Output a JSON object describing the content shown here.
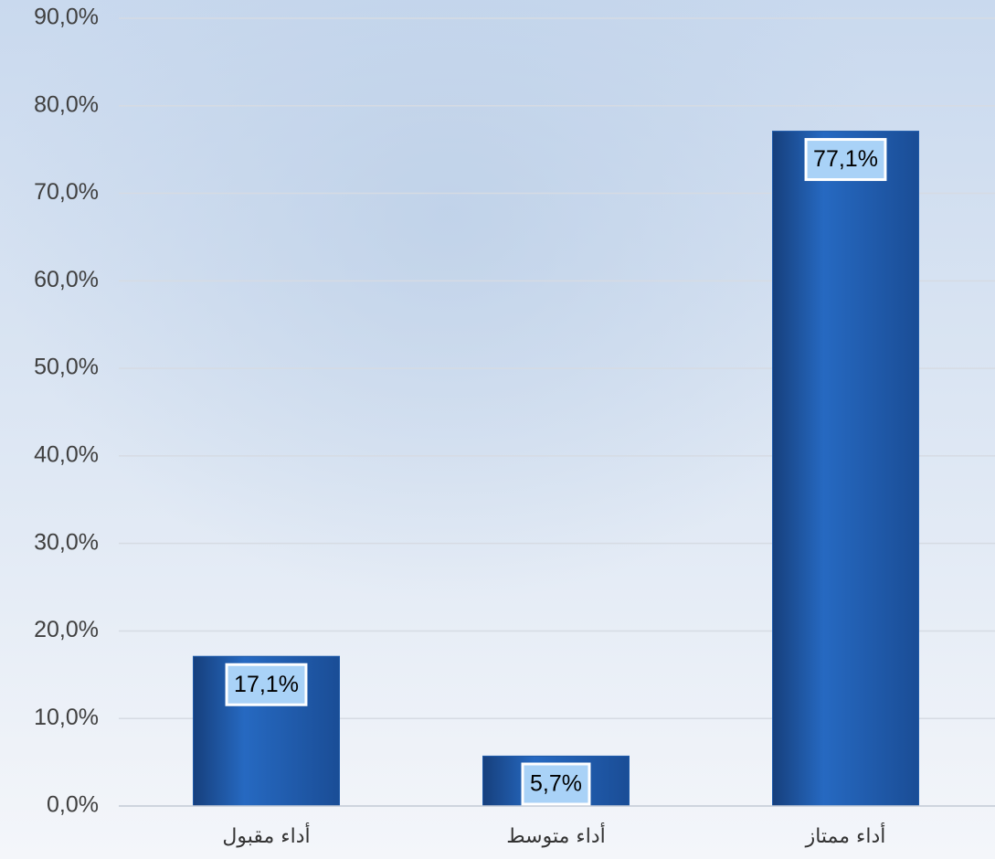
{
  "chart_data": {
    "type": "bar",
    "categories": [
      "أداء مقبول",
      "أداء متوسط",
      "أداء ممتاز"
    ],
    "values": [
      17.1,
      5.7,
      77.1
    ],
    "value_labels": [
      "17,1%",
      "5,7%",
      "77,1%"
    ],
    "color": "#1f5bab",
    "ylim": [
      0,
      90
    ],
    "yticks": [
      {
        "value": 0,
        "label": "0,0%"
      },
      {
        "value": 10,
        "label": "10,0%"
      },
      {
        "value": 20,
        "label": "20,0%"
      },
      {
        "value": 30,
        "label": "30,0%"
      },
      {
        "value": 40,
        "label": "40,0%"
      },
      {
        "value": 50,
        "label": "50,0%"
      },
      {
        "value": 60,
        "label": "60,0%"
      },
      {
        "value": 70,
        "label": "70,0%"
      },
      {
        "value": 80,
        "label": "80,0%"
      },
      {
        "value": 90,
        "label": "90,0%"
      }
    ],
    "grid": true
  }
}
